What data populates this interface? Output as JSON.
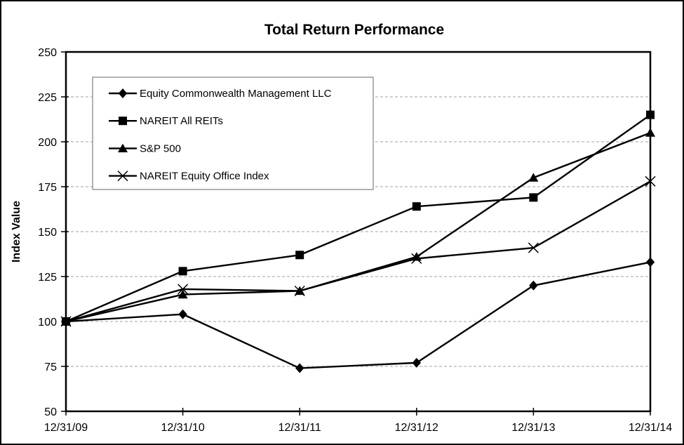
{
  "chart_data": {
    "type": "line",
    "title": "Total Return Performance",
    "xlabel": "",
    "ylabel": "Index Value",
    "x_tick_labels": [
      "12/31/09",
      "12/31/10",
      "12/31/11",
      "12/31/12",
      "12/31/13",
      "12/31/14"
    ],
    "y_tick_labels": [
      250,
      225,
      200,
      175,
      150,
      125,
      100,
      75,
      50
    ],
    "ylim": [
      50,
      250
    ],
    "ytick_step": 25,
    "grid": true,
    "grid_style": "dashed",
    "legend_position": "upper-left-inside",
    "line_color": "#000000",
    "grid_color": "#a0a0a0",
    "legend_border_color": "#808080",
    "background": "#ffffff",
    "series": [
      {
        "name": "Equity Commonwealth Management LLC",
        "marker": "diamond",
        "color": "#000000",
        "values": [
          100,
          104,
          74,
          77,
          120,
          133
        ]
      },
      {
        "name": "NAREIT All REITs",
        "marker": "square",
        "color": "#000000",
        "values": [
          100,
          128,
          137,
          164,
          169,
          215
        ]
      },
      {
        "name": "S&P 500",
        "marker": "triangle",
        "color": "#000000",
        "values": [
          100,
          115,
          117,
          136,
          180,
          205
        ]
      },
      {
        "name": "NAREIT Equity Office Index",
        "marker": "x",
        "color": "#000000",
        "values": [
          100,
          118,
          117,
          135,
          141,
          178
        ]
      }
    ]
  }
}
